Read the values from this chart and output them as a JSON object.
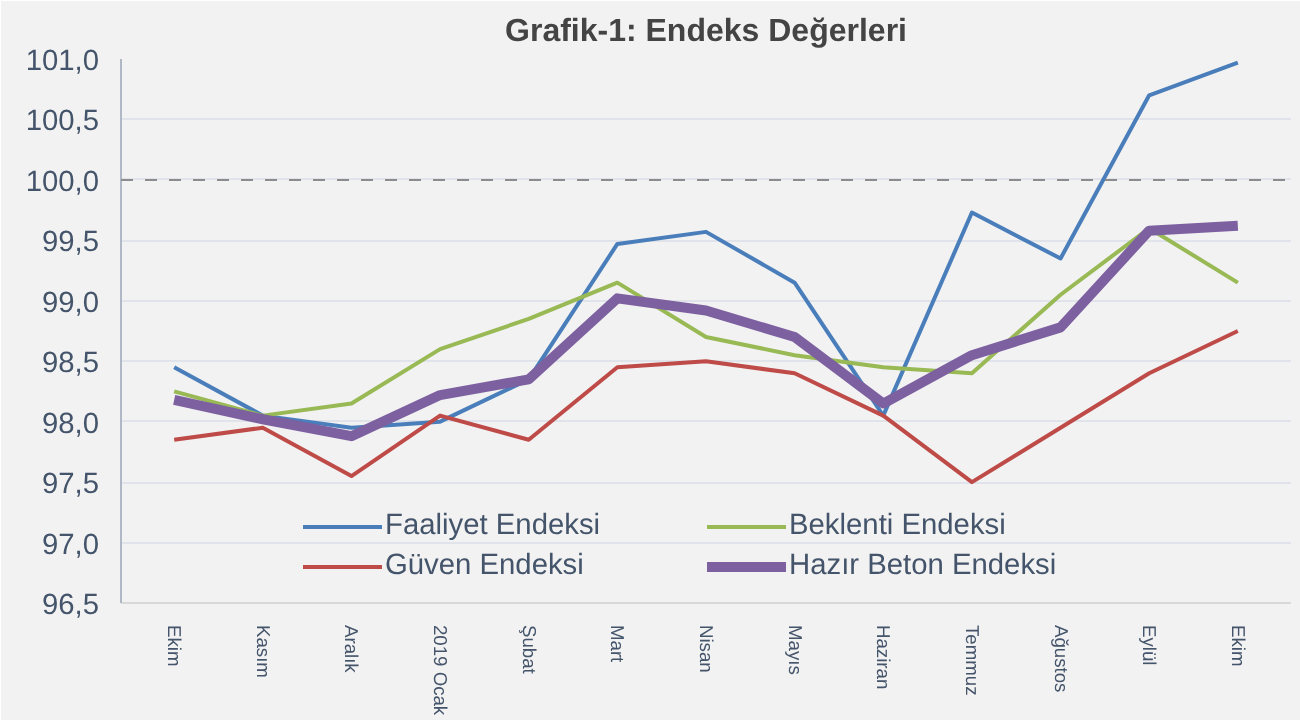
{
  "chart_data": {
    "type": "line",
    "title": "Grafik-1: Endeks Değerleri",
    "categories": [
      "Ekim",
      "Kasım",
      "Aralık",
      "2019 Ocak",
      "Şubat",
      "Mart",
      "Nisan",
      "Mayıs",
      "Haziran",
      "Temmuz",
      "Ağustos",
      "Eylül",
      "Ekim"
    ],
    "series": [
      {
        "name": "Faaliyet Endeksi",
        "color": "#4a7ebb",
        "values": [
          98.45,
          98.05,
          97.95,
          98.0,
          98.35,
          99.47,
          99.57,
          99.15,
          98.05,
          99.73,
          99.35,
          100.7,
          100.97
        ]
      },
      {
        "name": "Güven Endeksi",
        "color": "#be4b48",
        "values": [
          97.85,
          97.95,
          97.55,
          98.05,
          97.85,
          98.45,
          98.5,
          98.4,
          98.05,
          97.5,
          97.95,
          98.4,
          98.75
        ]
      },
      {
        "name": "Beklenti Endeksi",
        "color": "#98b954",
        "values": [
          98.25,
          98.05,
          98.15,
          98.6,
          98.85,
          99.15,
          98.7,
          98.55,
          98.45,
          98.4,
          99.05,
          99.6,
          99.15
        ]
      },
      {
        "name": "Hazır Beton Endeksi",
        "color": "#7d60a0",
        "values": [
          98.18,
          98.02,
          97.88,
          98.22,
          98.35,
          99.02,
          98.92,
          98.7,
          98.15,
          98.55,
          98.78,
          99.58,
          99.62
        ]
      }
    ],
    "ylim": [
      96.5,
      101.0
    ],
    "yticks": [
      {
        "value": 96.5,
        "label": "96,5"
      },
      {
        "value": 97.0,
        "label": "97,0"
      },
      {
        "value": 97.5,
        "label": "97,5"
      },
      {
        "value": 98.0,
        "label": "98,0"
      },
      {
        "value": 98.5,
        "label": "98,5"
      },
      {
        "value": 99.0,
        "label": "99,0"
      },
      {
        "value": 99.5,
        "label": "99,5"
      },
      {
        "value": 100.0,
        "label": "100,0"
      },
      {
        "value": 100.5,
        "label": "100,5"
      },
      {
        "value": 101.0,
        "label": "101,0"
      }
    ],
    "ref_lines": [
      {
        "axis": "y",
        "value": 100.0,
        "color": "#8c8c8c",
        "line_style": "dashed"
      }
    ],
    "grid": "y",
    "legend": "bottom",
    "marker": "none",
    "line_style": "solid"
  }
}
